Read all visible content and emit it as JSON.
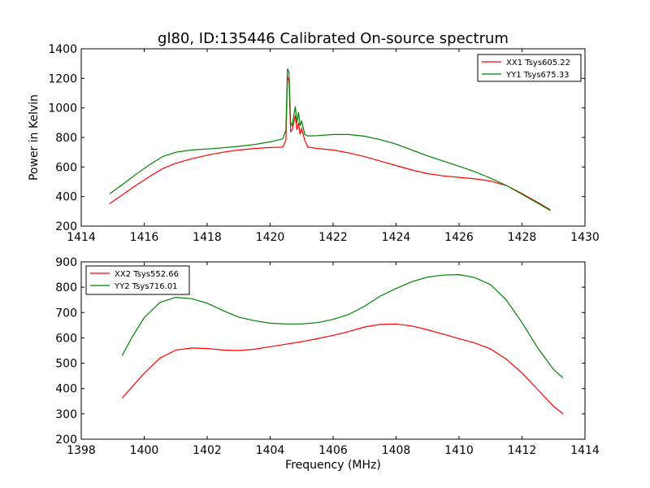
{
  "figure": {
    "title": "gl80, ID:135446 Calibrated On-source spectrum",
    "ylabel": "Power in Kelvin",
    "xlabel": "Frequency (MHz)"
  },
  "chart_data": [
    {
      "type": "line",
      "title": "gl80, ID:135446 Calibrated On-source spectrum",
      "ylabel": "Power in Kelvin",
      "xlabel": "",
      "xlim": [
        1414,
        1430
      ],
      "ylim": [
        200,
        1400
      ],
      "xticks": [
        1414,
        1416,
        1418,
        1420,
        1422,
        1424,
        1426,
        1428,
        1430
      ],
      "yticks": [
        200,
        400,
        600,
        800,
        1000,
        1200,
        1400
      ],
      "grid": false,
      "legend_position": "top-right",
      "series": [
        {
          "name": "XX1 Tsys605.22",
          "color": "#ff0000",
          "x": [
            1414.9,
            1415.3,
            1415.7,
            1416.2,
            1416.6,
            1417.0,
            1417.5,
            1418.0,
            1418.5,
            1419.0,
            1419.5,
            1420.0,
            1420.4,
            1420.5,
            1420.55,
            1420.6,
            1420.65,
            1420.7,
            1420.8,
            1420.85,
            1420.9,
            1420.95,
            1421.0,
            1421.1,
            1421.2,
            1421.5,
            1422.0,
            1422.5,
            1423.0,
            1423.5,
            1424.0,
            1424.5,
            1425.0,
            1425.5,
            1426.0,
            1426.5,
            1427.0,
            1427.5,
            1428.0,
            1428.5,
            1428.9
          ],
          "y": [
            352,
            410,
            470,
            540,
            590,
            625,
            655,
            680,
            700,
            715,
            725,
            732,
            735,
            780,
            1210,
            1180,
            840,
            850,
            950,
            850,
            900,
            820,
            860,
            780,
            735,
            725,
            715,
            695,
            670,
            640,
            610,
            580,
            555,
            540,
            530,
            520,
            505,
            475,
            420,
            360,
            310
          ]
        },
        {
          "name": "YY1 Tsys675.33",
          "color": "#008000",
          "x": [
            1414.9,
            1415.3,
            1415.7,
            1416.2,
            1416.6,
            1417.0,
            1417.5,
            1418.0,
            1418.5,
            1419.0,
            1419.5,
            1420.0,
            1420.4,
            1420.5,
            1420.55,
            1420.6,
            1420.65,
            1420.7,
            1420.8,
            1420.85,
            1420.9,
            1420.95,
            1421.0,
            1421.1,
            1421.2,
            1421.5,
            1422.0,
            1422.5,
            1423.0,
            1423.5,
            1424.0,
            1424.5,
            1425.0,
            1425.5,
            1426.0,
            1426.5,
            1427.0,
            1427.5,
            1428.0,
            1428.5,
            1428.9
          ],
          "y": [
            418,
            480,
            545,
            620,
            672,
            700,
            715,
            722,
            730,
            740,
            752,
            770,
            790,
            850,
            1265,
            1240,
            900,
            880,
            1010,
            900,
            970,
            880,
            910,
            820,
            810,
            812,
            820,
            820,
            808,
            785,
            755,
            715,
            675,
            640,
            605,
            568,
            525,
            475,
            415,
            355,
            305
          ]
        }
      ]
    },
    {
      "type": "line",
      "title": "",
      "ylabel": "",
      "xlabel": "Frequency (MHz)",
      "xlim": [
        1398,
        1414
      ],
      "ylim": [
        200,
        900
      ],
      "xticks": [
        1398,
        1400,
        1402,
        1404,
        1406,
        1408,
        1410,
        1412,
        1414
      ],
      "yticks": [
        200,
        300,
        400,
        500,
        600,
        700,
        800,
        900
      ],
      "grid": false,
      "legend_position": "top-left",
      "series": [
        {
          "name": "XX2 Tsys552.66",
          "color": "#ff0000",
          "x": [
            1399.3,
            1399.6,
            1400.0,
            1400.5,
            1401.0,
            1401.5,
            1402.0,
            1402.5,
            1403.0,
            1403.5,
            1404.0,
            1404.5,
            1405.0,
            1405.5,
            1406.0,
            1406.5,
            1407.0,
            1407.5,
            1408.0,
            1408.5,
            1409.0,
            1409.5,
            1410.0,
            1410.5,
            1411.0,
            1411.5,
            1412.0,
            1412.5,
            1413.0,
            1413.3
          ],
          "y": [
            362,
            405,
            460,
            520,
            552,
            560,
            558,
            552,
            550,
            555,
            565,
            575,
            585,
            597,
            610,
            625,
            643,
            653,
            655,
            647,
            632,
            615,
            597,
            580,
            556,
            516,
            461,
            396,
            330,
            300
          ]
        },
        {
          "name": "YY2 Tsys716.01",
          "color": "#008000",
          "x": [
            1399.3,
            1399.6,
            1400.0,
            1400.5,
            1401.0,
            1401.5,
            1402.0,
            1402.5,
            1403.0,
            1403.5,
            1404.0,
            1404.5,
            1405.0,
            1405.5,
            1406.0,
            1406.5,
            1407.0,
            1407.5,
            1408.0,
            1408.5,
            1409.0,
            1409.5,
            1410.0,
            1410.5,
            1411.0,
            1411.5,
            1412.0,
            1412.5,
            1413.0,
            1413.3
          ],
          "y": [
            530,
            600,
            680,
            740,
            760,
            755,
            737,
            708,
            682,
            668,
            658,
            655,
            655,
            660,
            673,
            693,
            725,
            765,
            795,
            822,
            840,
            848,
            850,
            838,
            810,
            750,
            660,
            560,
            475,
            442
          ]
        }
      ]
    }
  ]
}
